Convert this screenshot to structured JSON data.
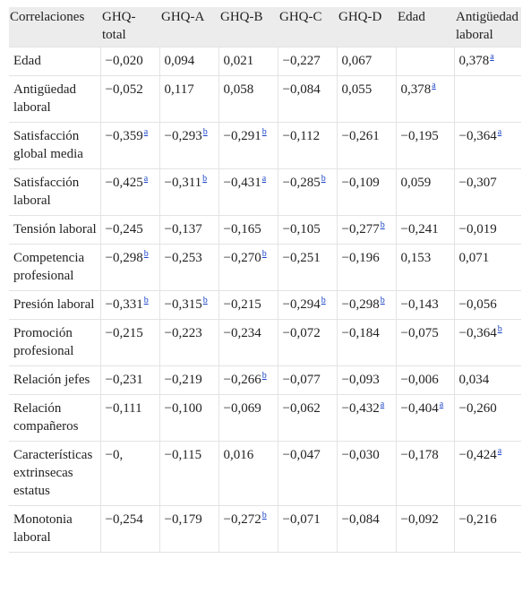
{
  "table": {
    "headers": [
      "Correlaciones",
      "GHQ-total",
      "GHQ-A",
      "GHQ-B",
      "GHQ-C",
      "GHQ-D",
      "Edad",
      "Antigüedad laboral"
    ],
    "rows": [
      {
        "label": "Edad",
        "cells": [
          {
            "v": "−0,020",
            "r": ""
          },
          {
            "v": "0,094",
            "r": ""
          },
          {
            "v": "0,021",
            "r": ""
          },
          {
            "v": "−0,227",
            "r": ""
          },
          {
            "v": "0,067",
            "r": ""
          },
          {
            "v": "",
            "r": ""
          },
          {
            "v": "0,378",
            "r": "a"
          }
        ]
      },
      {
        "label": "Antigüedad laboral",
        "cells": [
          {
            "v": "−0,052",
            "r": ""
          },
          {
            "v": "0,117",
            "r": ""
          },
          {
            "v": "0,058",
            "r": ""
          },
          {
            "v": "−0,084",
            "r": ""
          },
          {
            "v": "0,055",
            "r": ""
          },
          {
            "v": "0,378",
            "r": "a"
          },
          {
            "v": "",
            "r": ""
          }
        ]
      },
      {
        "label": "Satisfacción global media",
        "cells": [
          {
            "v": "−0,359",
            "r": "a"
          },
          {
            "v": "−0,293",
            "r": "b"
          },
          {
            "v": "−0,291",
            "r": "b"
          },
          {
            "v": "−0,112",
            "r": ""
          },
          {
            "v": "−0,261",
            "r": ""
          },
          {
            "v": "−0,195",
            "r": ""
          },
          {
            "v": "−0,364",
            "r": "a"
          }
        ]
      },
      {
        "label": "Satisfacción laboral",
        "cells": [
          {
            "v": "−0,425",
            "r": "a"
          },
          {
            "v": "−0,311",
            "r": "b"
          },
          {
            "v": "−0,431",
            "r": "a"
          },
          {
            "v": "−0,285",
            "r": "b"
          },
          {
            "v": "−0,109",
            "r": ""
          },
          {
            "v": "0,059",
            "r": ""
          },
          {
            "v": "−0,307",
            "r": ""
          }
        ]
      },
      {
        "label": "Tensión laboral",
        "cells": [
          {
            "v": "−0,245",
            "r": ""
          },
          {
            "v": "−0,137",
            "r": ""
          },
          {
            "v": "−0,165",
            "r": ""
          },
          {
            "v": "−0,105",
            "r": ""
          },
          {
            "v": "−0,277",
            "r": "b"
          },
          {
            "v": "−0,241",
            "r": ""
          },
          {
            "v": "−0,019",
            "r": ""
          }
        ]
      },
      {
        "label": "Competencia profesional",
        "cells": [
          {
            "v": "−0,298",
            "r": "b"
          },
          {
            "v": "−0,253",
            "r": ""
          },
          {
            "v": "−0,270",
            "r": "b"
          },
          {
            "v": "−0,251",
            "r": ""
          },
          {
            "v": "−0,196",
            "r": ""
          },
          {
            "v": "0,153",
            "r": ""
          },
          {
            "v": "0,071",
            "r": ""
          }
        ]
      },
      {
        "label": "Presión laboral",
        "cells": [
          {
            "v": "−0,331",
            "r": "b"
          },
          {
            "v": "−0,315",
            "r": "b"
          },
          {
            "v": "−0,215",
            "r": ""
          },
          {
            "v": "−0,294",
            "r": "b"
          },
          {
            "v": "−0,298",
            "r": "b"
          },
          {
            "v": "−0,143",
            "r": ""
          },
          {
            "v": "−0,056",
            "r": ""
          }
        ]
      },
      {
        "label": "Promoción profesional",
        "cells": [
          {
            "v": "−0,215",
            "r": ""
          },
          {
            "v": "−0,223",
            "r": ""
          },
          {
            "v": "−0,234",
            "r": ""
          },
          {
            "v": "−0,072",
            "r": ""
          },
          {
            "v": "−0,184",
            "r": ""
          },
          {
            "v": "−0,075",
            "r": ""
          },
          {
            "v": "−0,364",
            "r": "b"
          }
        ]
      },
      {
        "label": "Relación jefes",
        "cells": [
          {
            "v": "−0,231",
            "r": ""
          },
          {
            "v": "−0,219",
            "r": ""
          },
          {
            "v": "−0,266",
            "r": "b"
          },
          {
            "v": "−0,077",
            "r": ""
          },
          {
            "v": "−0,093",
            "r": ""
          },
          {
            "v": "−0,006",
            "r": ""
          },
          {
            "v": "0,034",
            "r": ""
          }
        ]
      },
      {
        "label": "Relación compañeros",
        "cells": [
          {
            "v": "−0,111",
            "r": ""
          },
          {
            "v": "−0,100",
            "r": ""
          },
          {
            "v": "−0,069",
            "r": ""
          },
          {
            "v": "−0,062",
            "r": ""
          },
          {
            "v": "−0,432",
            "r": "a"
          },
          {
            "v": "−0,404",
            "r": "a"
          },
          {
            "v": "−0,260",
            "r": ""
          }
        ]
      },
      {
        "label": "Características extrinsecas estatus",
        "cells": [
          {
            "v": "−0,",
            "r": ""
          },
          {
            "v": "−0,115",
            "r": ""
          },
          {
            "v": "0,016",
            "r": ""
          },
          {
            "v": "−0,047",
            "r": ""
          },
          {
            "v": "−0,030",
            "r": ""
          },
          {
            "v": "−0,178",
            "r": ""
          },
          {
            "v": "−0,424",
            "r": "a"
          }
        ]
      },
      {
        "label": "Monotonia laboral",
        "cells": [
          {
            "v": "−0,254",
            "r": ""
          },
          {
            "v": "−0,179",
            "r": ""
          },
          {
            "v": "−0,272",
            "r": "b"
          },
          {
            "v": "−0,071",
            "r": ""
          },
          {
            "v": "−0,084",
            "r": ""
          },
          {
            "v": "−0,092",
            "r": ""
          },
          {
            "v": "−0,216",
            "r": ""
          }
        ]
      }
    ]
  }
}
